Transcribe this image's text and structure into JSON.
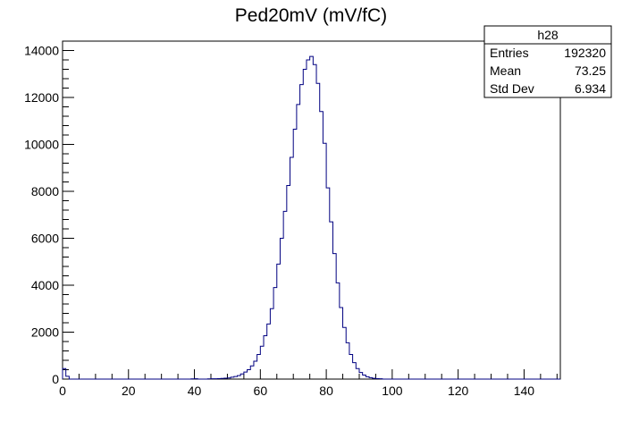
{
  "chart_data": {
    "type": "histogram",
    "title": "Ped20mV (mV/fC)",
    "xlabel": "",
    "ylabel": "",
    "xlim": [
      0,
      151
    ],
    "ylim": [
      0,
      14400
    ],
    "bin_width": 1,
    "line_color": "#000080",
    "x_ticks": [
      0,
      20,
      40,
      60,
      80,
      100,
      120,
      140
    ],
    "x_tick_labels": [
      "0",
      "20",
      "40",
      "60",
      "80",
      "100",
      "120",
      "140"
    ],
    "y_ticks": [
      0,
      2000,
      4000,
      6000,
      8000,
      10000,
      12000,
      14000
    ],
    "y_tick_labels": [
      "0",
      "2000",
      "4000",
      "6000",
      "8000",
      "10000",
      "12000",
      "14000"
    ],
    "bins": [
      [
        0,
        450
      ],
      [
        1,
        120
      ],
      [
        39,
        10
      ],
      [
        40,
        15
      ],
      [
        44,
        10
      ],
      [
        45,
        15
      ],
      [
        46,
        15
      ],
      [
        47,
        20
      ],
      [
        48,
        30
      ],
      [
        49,
        40
      ],
      [
        50,
        50
      ],
      [
        51,
        80
      ],
      [
        52,
        110
      ],
      [
        53,
        150
      ],
      [
        54,
        220
      ],
      [
        55,
        300
      ],
      [
        56,
        400
      ],
      [
        57,
        560
      ],
      [
        58,
        760
      ],
      [
        59,
        1050
      ],
      [
        60,
        1400
      ],
      [
        61,
        1850
      ],
      [
        62,
        2350
      ],
      [
        63,
        3000
      ],
      [
        64,
        3900
      ],
      [
        65,
        4900
      ],
      [
        66,
        6000
      ],
      [
        67,
        7150
      ],
      [
        68,
        8250
      ],
      [
        69,
        9450
      ],
      [
        70,
        10650
      ],
      [
        71,
        11700
      ],
      [
        72,
        12550
      ],
      [
        73,
        13200
      ],
      [
        74,
        13600
      ],
      [
        75,
        13750
      ],
      [
        76,
        13400
      ],
      [
        77,
        12600
      ],
      [
        78,
        11400
      ],
      [
        79,
        10050
      ],
      [
        80,
        8150
      ],
      [
        81,
        6700
      ],
      [
        82,
        5350
      ],
      [
        83,
        4100
      ],
      [
        84,
        3050
      ],
      [
        85,
        2200
      ],
      [
        86,
        1550
      ],
      [
        87,
        1050
      ],
      [
        88,
        700
      ],
      [
        89,
        450
      ],
      [
        90,
        280
      ],
      [
        91,
        170
      ],
      [
        92,
        100
      ],
      [
        93,
        60
      ],
      [
        94,
        35
      ],
      [
        95,
        20
      ],
      [
        96,
        12
      ]
    ]
  },
  "stats_box": {
    "name": "h28",
    "rows": [
      {
        "label": "Entries",
        "value": "192320"
      },
      {
        "label": "Mean",
        "value": "73.25"
      },
      {
        "label": "Std Dev",
        "value": "6.934"
      }
    ]
  }
}
